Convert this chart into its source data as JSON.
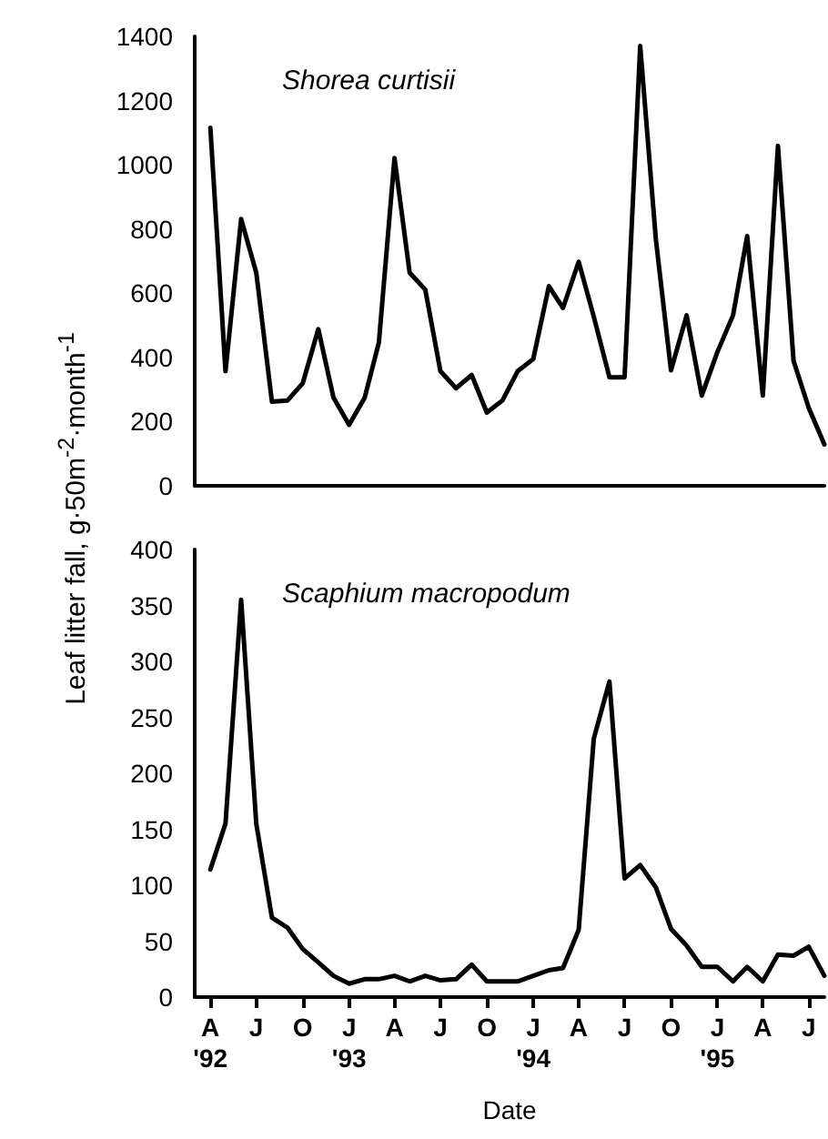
{
  "chart_data": [
    {
      "type": "line",
      "title": "Shorea curtisii",
      "ylabel": "Leaf litter fall, g·50m$^{-2}$·month$^{-1}$",
      "tick_labels": "y",
      "marker": "none",
      "grid": false,
      "x": [
        "1992-04",
        "1992-05",
        "1992-06",
        "1992-07",
        "1992-08",
        "1992-09",
        "1992-10",
        "1992-11",
        "1992-12",
        "1993-01",
        "1993-02",
        "1993-03",
        "1993-04",
        "1993-05",
        "1993-06",
        "1993-07",
        "1993-08",
        "1993-09",
        "1993-10",
        "1993-11",
        "1993-12",
        "1994-01",
        "1994-02",
        "1994-03",
        "1994-04",
        "1994-05",
        "1994-06",
        "1994-07",
        "1994-08",
        "1994-09",
        "1994-10",
        "1994-11",
        "1994-12",
        "1995-01",
        "1995-02",
        "1995-03",
        "1995-04",
        "1995-05",
        "1995-06",
        "1995-07",
        "1995-08"
      ],
      "xlim": [
        "1992-03",
        "1995-08"
      ],
      "series": [
        {
          "color": "#000000",
          "values": [
            1115,
            357,
            831,
            664,
            262,
            266,
            319,
            488,
            275,
            190,
            275,
            446,
            1021,
            664,
            611,
            357,
            304,
            345,
            228,
            266,
            357,
            395,
            622,
            554,
            698,
            527,
            338,
            338,
            1370,
            768,
            360,
            531,
            281,
            417,
            531,
            778,
            281,
            1059,
            389,
            243,
            129
          ]
        }
      ],
      "ylim": [
        0,
        1400
      ],
      "yticks": [
        0,
        200,
        400,
        600,
        800,
        1000,
        1200,
        1400
      ]
    },
    {
      "type": "line",
      "title": "Scaphium macropodum",
      "xlabel": "Date",
      "marker": "none",
      "grid": false,
      "x": [
        "1992-04",
        "1992-05",
        "1992-06",
        "1992-07",
        "1992-08",
        "1992-09",
        "1992-10",
        "1992-11",
        "1992-12",
        "1993-01",
        "1993-02",
        "1993-03",
        "1993-04",
        "1993-05",
        "1993-06",
        "1993-07",
        "1993-08",
        "1993-09",
        "1993-10",
        "1993-11",
        "1993-12",
        "1994-01",
        "1994-02",
        "1994-03",
        "1994-04",
        "1994-05",
        "1994-06",
        "1994-07",
        "1994-08",
        "1994-09",
        "1994-10",
        "1994-11",
        "1994-12",
        "1995-01",
        "1995-02",
        "1995-03",
        "1995-04",
        "1995-05",
        "1995-06",
        "1995-07",
        "1995-08"
      ],
      "xlim": [
        "1992-03",
        "1995-08"
      ],
      "xticks": [
        {
          "value": "1992-04",
          "label": "A\n'92"
        },
        {
          "value": "1992-07",
          "label": "J"
        },
        {
          "value": "1992-10",
          "label": "O"
        },
        {
          "value": "1993-01",
          "label": "J\n'93"
        },
        {
          "value": "1993-04",
          "label": "A"
        },
        {
          "value": "1993-07",
          "label": "J"
        },
        {
          "value": "1993-10",
          "label": "O"
        },
        {
          "value": "1994-01",
          "label": "J\n'94"
        },
        {
          "value": "1994-04",
          "label": "A"
        },
        {
          "value": "1994-07",
          "label": "J"
        },
        {
          "value": "1994-10",
          "label": "O"
        },
        {
          "value": "1995-01",
          "label": "J\n'95"
        },
        {
          "value": "1995-04",
          "label": "A"
        },
        {
          "value": "1995-07",
          "label": "J"
        }
      ],
      "series": [
        {
          "color": "#000000",
          "values": [
            114,
            155,
            355,
            155,
            71,
            62,
            43,
            31,
            19,
            12,
            16,
            16,
            19,
            14,
            19,
            15,
            16,
            29,
            14,
            14,
            14,
            19,
            24,
            26,
            60,
            231,
            282,
            106,
            118,
            98,
            61,
            46,
            27,
            27,
            14,
            27,
            14,
            38,
            37,
            45,
            19
          ]
        }
      ],
      "ylim": [
        0,
        400
      ],
      "yticks": [
        0,
        50,
        100,
        150,
        200,
        250,
        300,
        350,
        400
      ]
    }
  ]
}
